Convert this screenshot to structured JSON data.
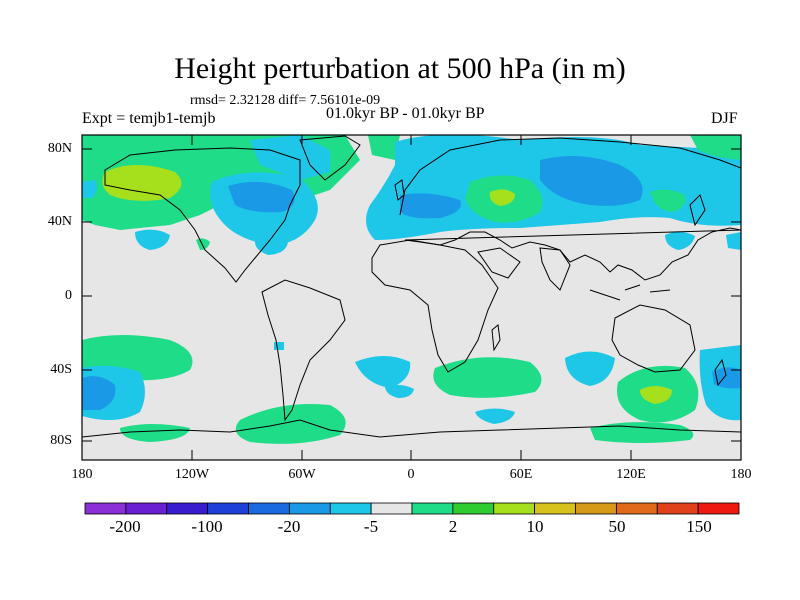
{
  "title": "Height perturbation at 500 hPa (in m)",
  "stats": "rmsd= 2.32128 diff= 7.56101e-09",
  "experiment": "Expt = temjb1-temjb",
  "period": "01.0kyr BP - 01.0kyr BP",
  "season": "DJF",
  "y_ticks": [
    "80N",
    "40N",
    "0",
    "40S",
    "80S"
  ],
  "x_ticks": [
    "180",
    "120W",
    "60W",
    "0",
    "60E",
    "120E",
    "180"
  ],
  "colorbar": {
    "colors": [
      "#8b2fd6",
      "#6a1fd0",
      "#3a1ccf",
      "#1e40d8",
      "#1b6ae0",
      "#1a9ae6",
      "#1ec6e8",
      "#e6e6e6",
      "#1fdc88",
      "#2ecc2e",
      "#a6e01c",
      "#d6c21a",
      "#d69a18",
      "#e06a1a",
      "#e0401a",
      "#ee1a12"
    ],
    "labels": [
      "-200",
      "-100",
      "-20",
      "-5",
      "2",
      "10",
      "50",
      "150"
    ]
  },
  "colors": {
    "background": "#e6e6e6",
    "cyan": "#1ec6e8",
    "blue": "#1a9ae6",
    "green": "#1fdc88",
    "yellow_green": "#a6e01c"
  }
}
